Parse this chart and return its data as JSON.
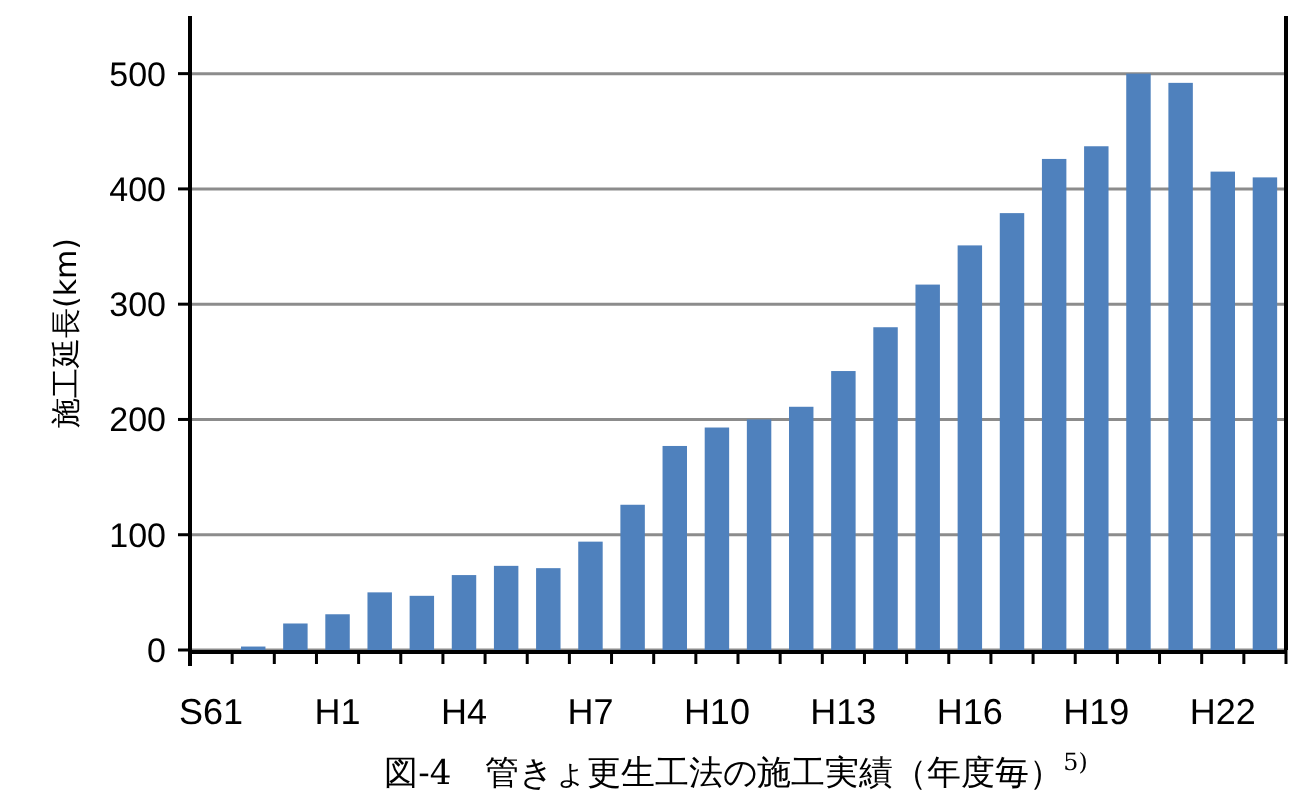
{
  "chart_data": {
    "type": "bar",
    "title": "図-4　管きょ更生工法の施工実績（年度毎）$^{5)}$",
    "ylabel": "施工延長(km)",
    "categories": [
      "S61",
      null,
      null,
      "H1",
      null,
      null,
      "H4",
      null,
      null,
      "H7",
      null,
      null,
      "H10",
      null,
      null,
      "H13",
      null,
      null,
      "H16",
      null,
      null,
      "H19",
      null,
      null,
      "H22",
      null
    ],
    "values": [
      0,
      3,
      23,
      31,
      50,
      47,
      65,
      73,
      71,
      94,
      126,
      177,
      193,
      200,
      211,
      242,
      280,
      317,
      351,
      379,
      426,
      437,
      500,
      492,
      415,
      410
    ],
    "color": "#4f81bd",
    "ylim": [
      0,
      550
    ],
    "yticks": [
      0,
      100,
      200,
      300,
      400,
      500
    ],
    "grid": "y"
  }
}
